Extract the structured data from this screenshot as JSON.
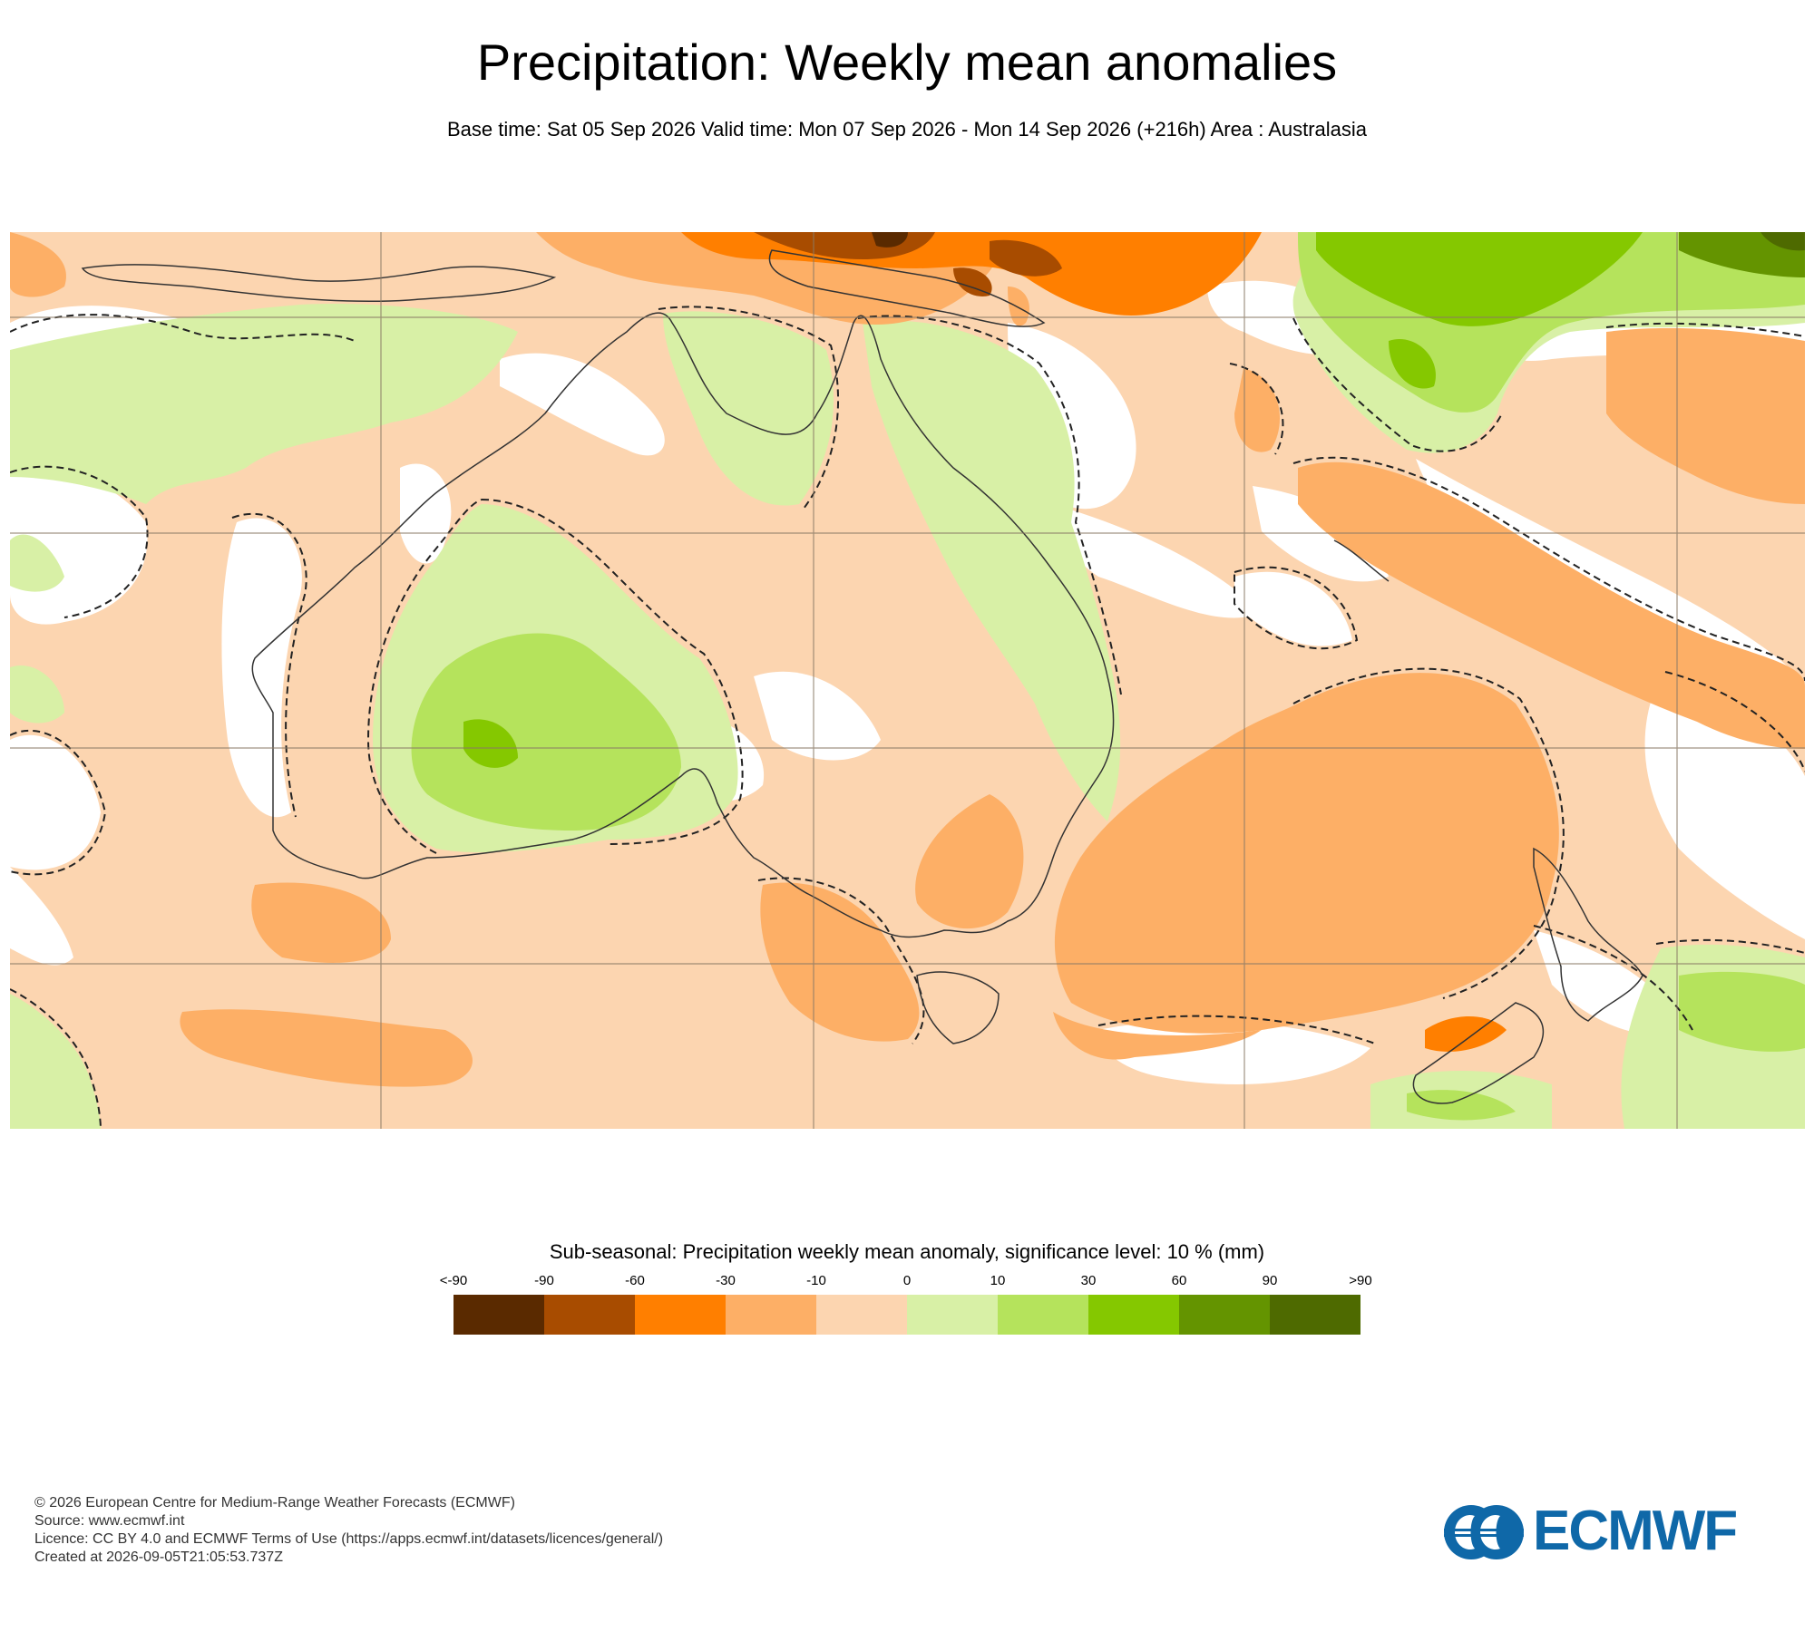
{
  "header": {
    "title": "Precipitation: Weekly mean anomalies",
    "subtitle": "Base time: Sat 05 Sep 2026 Valid time: Mon 07 Sep 2026 - Mon 14 Sep 2026 (+216h) Area : Australasia"
  },
  "legend": {
    "title": "Sub-seasonal: Precipitation weekly mean anomaly, significance level: 10 % (mm)",
    "ticks": [
      "<-90",
      "-90",
      "-60",
      "-30",
      "-10",
      "0",
      "10",
      "30",
      "60",
      "90",
      ">90"
    ],
    "colors": [
      "#5a2a00",
      "#a84c00",
      "#ff7f00",
      "#fdaf66",
      "#fcd5b0",
      "#d8f0a6",
      "#b5e35c",
      "#85c800",
      "#649400",
      "#4e6a00"
    ]
  },
  "footer": {
    "copyright": "© 2026 European Centre for Medium-Range Weather Forecasts (ECMWF)",
    "source": "Source: www.ecmwf.int",
    "licence": "Licence: CC BY 4.0 and ECMWF Terms of Use (https://apps.ecmwf.int/datasets/licences/general/)",
    "created": "Created at 2026-09-05T21:05:53.737Z"
  },
  "logo": {
    "text": "ECMWF",
    "color": "#0f68a8"
  },
  "map": {
    "region": "Australasia",
    "base_fill": "#fcd5b0",
    "features": [
      "Australia",
      "Tasmania",
      "New Zealand",
      "New Guinea",
      "Indonesia",
      "New Caledonia",
      "Fiji"
    ]
  }
}
